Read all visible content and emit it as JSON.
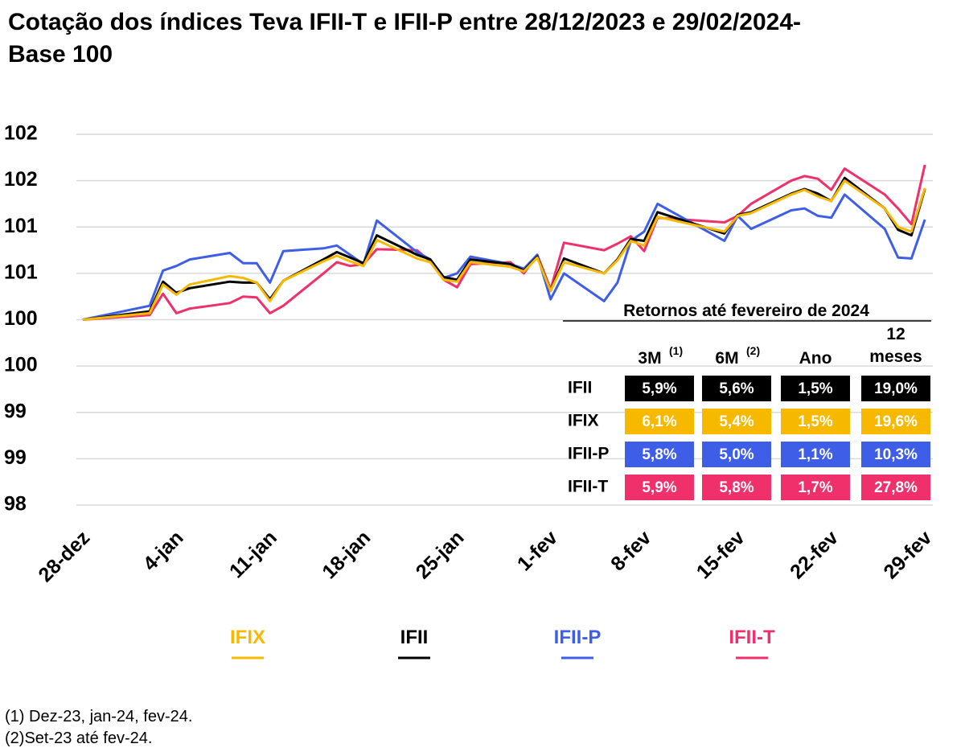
{
  "chart_data": {
    "type": "line",
    "title": "Cotação dos índices Teva IFII-T e IFII-P entre 28/12/2023 e 29/02/2024- Base 100",
    "x": [
      "28-dez",
      "2-jan",
      "3-jan",
      "4-jan",
      "5-jan",
      "8-jan",
      "9-jan",
      "10-jan",
      "11-jan",
      "12-jan",
      "15-jan",
      "16-jan",
      "17-jan",
      "18-jan",
      "19-jan",
      "22-jan",
      "23-jan",
      "24-jan",
      "25-jan",
      "26-jan",
      "29-jan",
      "30-jan",
      "31-jan",
      "1-fev",
      "2-fev",
      "5-fev",
      "6-fev",
      "7-fev",
      "8-fev",
      "9-fev",
      "14-fev",
      "15-fev",
      "16-fev",
      "19-fev",
      "20-fev",
      "21-fev",
      "22-fev",
      "23-fev",
      "26-fev",
      "27-fev",
      "28-fev",
      "29-fev"
    ],
    "xticks": [
      "28-dez",
      "4-jan",
      "11-jan",
      "18-jan",
      "25-jan",
      "1-fev",
      "8-fev",
      "15-fev",
      "22-fev",
      "29-fev"
    ],
    "ylim": [
      98,
      102
    ],
    "yticks": [
      {
        "value": 98,
        "label": "98"
      },
      {
        "value": 98.5,
        "label": "99"
      },
      {
        "value": 99,
        "label": "99"
      },
      {
        "value": 99.5,
        "label": "100"
      },
      {
        "value": 100,
        "label": "100"
      },
      {
        "value": 100.5,
        "label": "101"
      },
      {
        "value": 101,
        "label": "101"
      },
      {
        "value": 101.5,
        "label": "102"
      },
      {
        "value": 102,
        "label": "102"
      }
    ],
    "grid": true,
    "series": [
      {
        "name": "IFIX",
        "color": "#f7b900",
        "values": [
          100,
          100.07,
          100.38,
          100.27,
          100.38,
          100.47,
          100.45,
          100.4,
          100.2,
          100.42,
          100.63,
          100.69,
          100.63,
          100.58,
          100.86,
          100.66,
          100.62,
          100.43,
          100.41,
          100.62,
          100.57,
          100.52,
          100.67,
          100.31,
          100.62,
          100.5,
          100.64,
          100.85,
          100.8,
          101.11,
          100.95,
          101.12,
          101.15,
          101.35,
          101.4,
          101.33,
          101.28,
          101.5,
          101.2,
          101,
          100.95,
          101.42
        ]
      },
      {
        "name": "IFII",
        "color": "#000000",
        "values": [
          100,
          100.09,
          100.41,
          100.29,
          100.34,
          100.41,
          100.4,
          100.4,
          100.22,
          100.42,
          100.65,
          100.73,
          100.67,
          100.61,
          100.91,
          100.7,
          100.65,
          100.46,
          100.43,
          100.65,
          100.6,
          100.53,
          100.68,
          100.31,
          100.66,
          100.5,
          100.65,
          100.87,
          100.85,
          101.16,
          100.93,
          101.13,
          101.16,
          101.36,
          101.41,
          101.36,
          101.28,
          101.53,
          101.2,
          100.97,
          100.91,
          101.41
        ]
      },
      {
        "name": "IFII-P",
        "color": "#3f5ee8",
        "values": [
          100,
          100.15,
          100.53,
          100.58,
          100.65,
          100.72,
          100.61,
          100.61,
          100.4,
          100.74,
          100.77,
          100.8,
          100.7,
          100.6,
          101.07,
          100.73,
          100.65,
          100.45,
          100.5,
          100.68,
          100.6,
          100.55,
          100.7,
          100.22,
          100.5,
          100.2,
          100.4,
          100.85,
          100.95,
          101.25,
          100.85,
          101.12,
          100.98,
          101.18,
          101.2,
          101.12,
          101.1,
          101.35,
          100.98,
          100.67,
          100.66,
          101.08
        ]
      },
      {
        "name": "IFII-T",
        "color": "#f0306a",
        "values": [
          100,
          100.05,
          100.28,
          100.07,
          100.12,
          100.18,
          100.25,
          100.24,
          100.07,
          100.15,
          100.5,
          100.62,
          100.58,
          100.6,
          100.76,
          100.75,
          100.63,
          100.43,
          100.35,
          100.6,
          100.62,
          100.5,
          100.7,
          100.33,
          100.83,
          100.75,
          100.82,
          100.9,
          100.74,
          101.1,
          101.05,
          101.12,
          101.25,
          101.5,
          101.55,
          101.52,
          101.4,
          101.63,
          101.35,
          101.2,
          101.03,
          101.67
        ]
      }
    ]
  },
  "table": {
    "title": "Retornos até fevereiro de 2024",
    "columns": [
      {
        "label": "3M",
        "note": "(1)"
      },
      {
        "label": "6M",
        "note": "(2)"
      },
      {
        "label": "Ano"
      },
      {
        "label": "12 meses"
      }
    ],
    "rows": [
      {
        "label": "IFII",
        "cells": [
          "5,9%",
          "5,6%",
          "1,5%",
          "19,0%"
        ]
      },
      {
        "label": "IFIX",
        "cells": [
          "6,1%",
          "5,4%",
          "1,5%",
          "19,6%"
        ]
      },
      {
        "label": "IFII-P",
        "cells": [
          "5,8%",
          "5,0%",
          "1,1%",
          "10,3%"
        ]
      },
      {
        "label": "IFII-T",
        "cells": [
          "5,9%",
          "5,8%",
          "1,7%",
          "27,8%"
        ]
      }
    ]
  },
  "footnotes": [
    "(1) Dez-23, jan-24, fev-24.",
    "(2)Set-23 até fev-24."
  ]
}
